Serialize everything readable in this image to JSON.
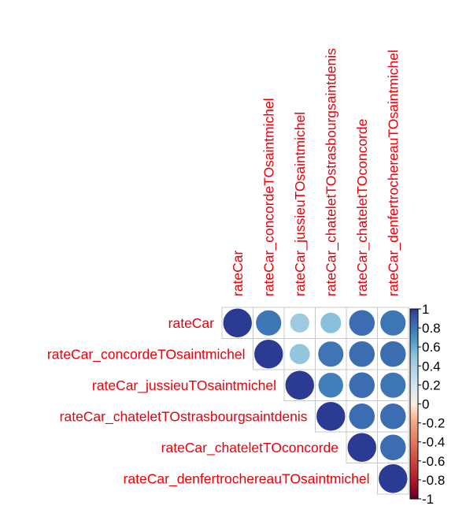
{
  "chart_data": {
    "type": "heatmap",
    "style": "upper-triangle circle correlogram",
    "title": "",
    "variables": [
      "rateCar",
      "rateCar_concordeTOsaintmichel",
      "rateCar_jussieuTOsaintmichel",
      "rateCar_chateletTOstrasbourgsaintdenis",
      "rateCar_chateletTOconcorde",
      "rateCar_denfertrochereauTOsaintmichel"
    ],
    "matrix": [
      [
        1.0,
        0.78,
        0.45,
        0.52,
        0.8,
        0.78
      ],
      [
        0.78,
        1.0,
        0.5,
        0.78,
        0.8,
        0.8
      ],
      [
        0.45,
        0.5,
        1.0,
        0.75,
        0.8,
        0.78
      ],
      [
        0.52,
        0.78,
        0.75,
        1.0,
        0.8,
        0.8
      ],
      [
        0.8,
        0.8,
        0.8,
        0.8,
        1.0,
        0.8
      ],
      [
        0.78,
        0.8,
        0.78,
        0.8,
        0.8,
        1.0
      ]
    ],
    "colorbar": {
      "ticks": [
        "1",
        "0.8",
        "0.6",
        "0.4",
        "0.2",
        "0",
        "-0.2",
        "-0.4",
        "-0.6",
        "-0.8",
        "-1"
      ],
      "range": [
        -1,
        1
      ],
      "colors": {
        "negative_end": "#67001f",
        "negative_mid": "#d6604d",
        "neutral": "#fdf0dc",
        "positive_mid": "#92c5de",
        "positive_end": "#2b3a92"
      }
    },
    "label_color": "#e8000b",
    "grid": true,
    "legend_position": "right"
  }
}
